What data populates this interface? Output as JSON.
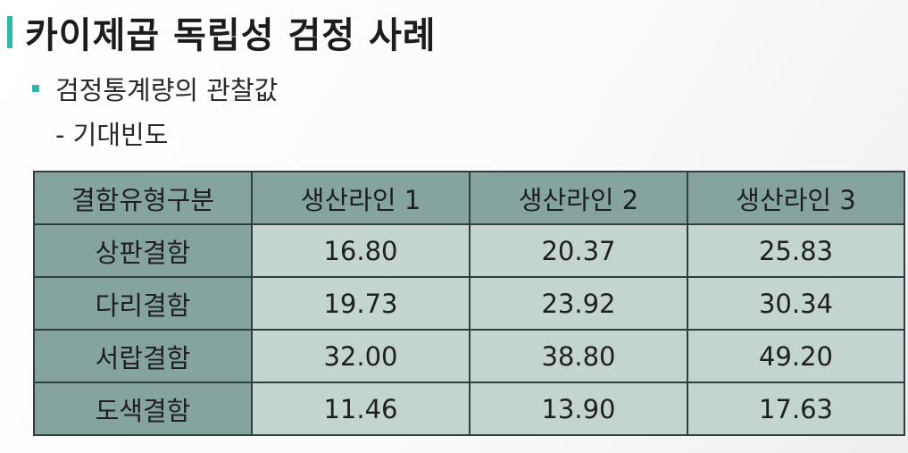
{
  "title": "카이제곱 독립성 검정 사례",
  "bullet": "검정통계량의 관찰값",
  "sub_bullet": "- 기대빈도",
  "colors": {
    "accent": "#2fb7a9",
    "header_cell": "#85a4a0",
    "data_cell": "#c4d4d1",
    "border": "#2f3f3d"
  },
  "table": {
    "headers": [
      "결함유형구분",
      "생산라인 1",
      "생산라인 2",
      "생산라인 3"
    ],
    "rows": [
      {
        "label": "상판결함",
        "values": [
          "16.80",
          "20.37",
          "25.83"
        ]
      },
      {
        "label": "다리결함",
        "values": [
          "19.73",
          "23.92",
          "30.34"
        ]
      },
      {
        "label": "서랍결함",
        "values": [
          "32.00",
          "38.80",
          "49.20"
        ]
      },
      {
        "label": "도색결함",
        "values": [
          "11.46",
          "13.90",
          "17.63"
        ]
      }
    ]
  }
}
